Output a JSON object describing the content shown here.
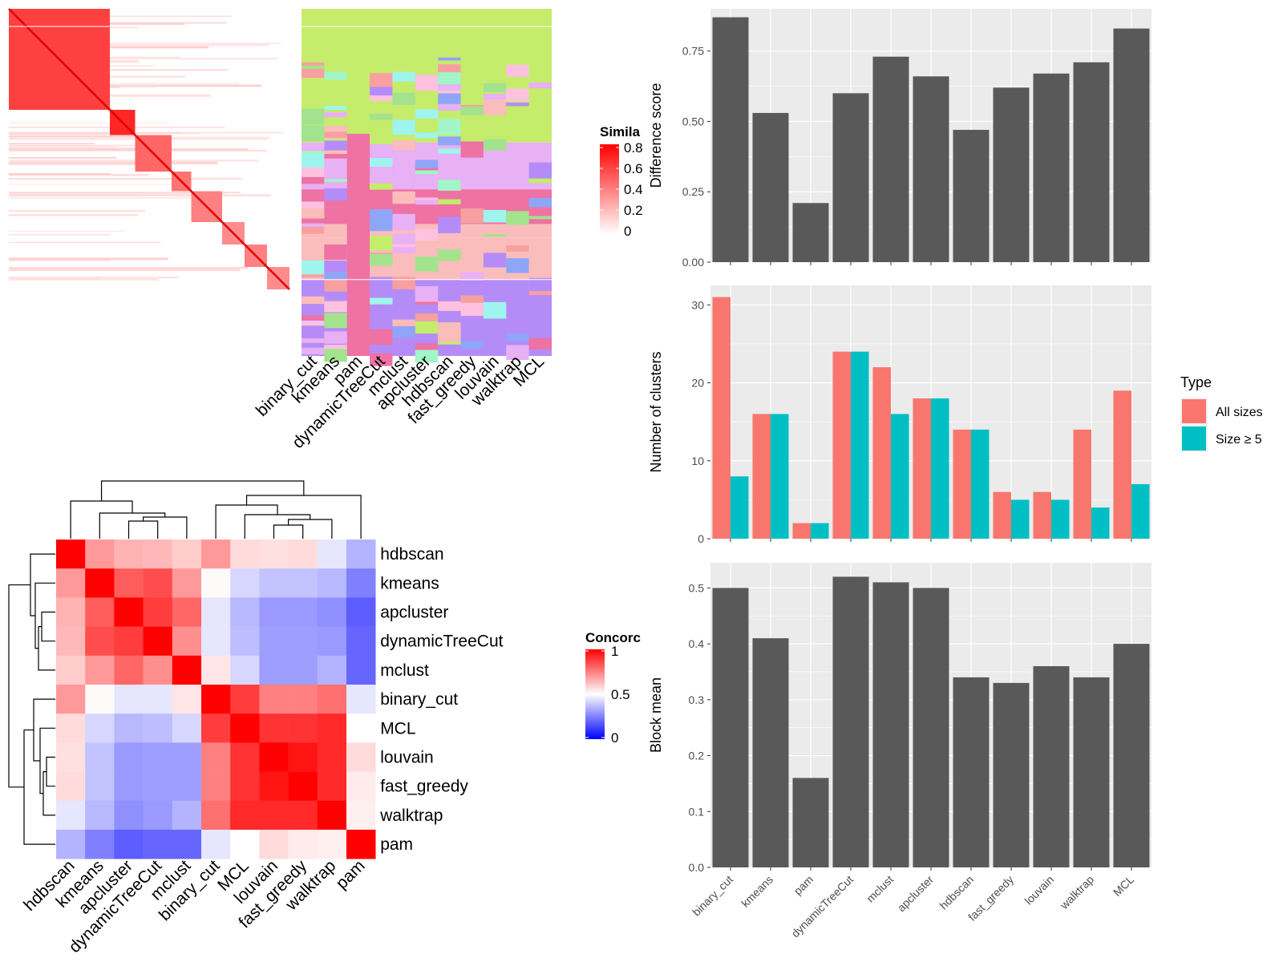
{
  "colors": {
    "panel_bg": "#ebebeb",
    "bar": "#595959",
    "all_sizes": "#F8766D",
    "size_ge_5": "#00BFC4",
    "heat_high": "#ff0000",
    "heat_mid": "#ffffff",
    "heat_low": "#0000ff"
  },
  "similarity_legend": {
    "title": "Simila",
    "ticks": [
      "0.8",
      "0.6",
      "0.4",
      "0.2",
      "0"
    ]
  },
  "concordance_legend": {
    "title": "Concorc",
    "ticks": [
      "1",
      "0.5",
      "0"
    ]
  },
  "membership_columns": [
    "binary_cut",
    "kmeans",
    "pam",
    "dynamicTreeCut",
    "mclust",
    "apcluster",
    "hdbscan",
    "fast_greedy",
    "louvain",
    "walktrap",
    "MCL"
  ],
  "chart_data": [
    {
      "type": "bar",
      "categories": [
        "binary_cut",
        "kmeans",
        "pam",
        "dynamicTreeCut",
        "mclust",
        "apcluster",
        "hdbscan",
        "fast_greedy",
        "louvain",
        "walktrap",
        "MCL"
      ],
      "values": [
        0.87,
        0.53,
        0.21,
        0.6,
        0.73,
        0.66,
        0.47,
        0.62,
        0.67,
        0.71,
        0.83
      ],
      "ylabel": "Difference score",
      "ylim": [
        0,
        0.9
      ],
      "yticks": [
        "0.00",
        "0.25",
        "0.50",
        "0.75"
      ],
      "grid": true
    },
    {
      "type": "bar",
      "categories": [
        "binary_cut",
        "kmeans",
        "pam",
        "dynamicTreeCut",
        "mclust",
        "apcluster",
        "hdbscan",
        "fast_greedy",
        "louvain",
        "walktrap",
        "MCL"
      ],
      "series": [
        {
          "name": "All sizes",
          "values": [
            31,
            16,
            2,
            24,
            22,
            18,
            14,
            6,
            6,
            14,
            19
          ]
        },
        {
          "name": "Size ≥ 5",
          "values": [
            8,
            16,
            2,
            24,
            16,
            18,
            14,
            5,
            5,
            4,
            7
          ]
        }
      ],
      "ylabel": "Number of clusters",
      "ylim": [
        0,
        32.5
      ],
      "yticks": [
        "0",
        "10",
        "20",
        "30"
      ],
      "legend_title": "Type",
      "legend_position": "right",
      "grid": true
    },
    {
      "type": "bar",
      "categories": [
        "binary_cut",
        "kmeans",
        "pam",
        "dynamicTreeCut",
        "mclust",
        "apcluster",
        "hdbscan",
        "fast_greedy",
        "louvain",
        "walktrap",
        "MCL"
      ],
      "values": [
        0.5,
        0.41,
        0.16,
        0.52,
        0.51,
        0.5,
        0.34,
        0.33,
        0.36,
        0.34,
        0.4
      ],
      "ylabel": "Block mean",
      "ylim": [
        0,
        0.545
      ],
      "yticks": [
        "0.0",
        "0.1",
        "0.2",
        "0.3",
        "0.4",
        "0.5"
      ],
      "grid": true
    },
    {
      "type": "heatmap",
      "rows": [
        "hdbscan",
        "kmeans",
        "apcluster",
        "dynamicTreeCut",
        "mclust",
        "binary_cut",
        "MCL",
        "louvain",
        "fast_greedy",
        "walktrap",
        "pam"
      ],
      "columns": [
        "hdbscan",
        "kmeans",
        "apcluster",
        "dynamicTreeCut",
        "mclust",
        "binary_cut",
        "MCL",
        "louvain",
        "fast_greedy",
        "walktrap",
        "pam"
      ],
      "values": [
        [
          1.0,
          0.7,
          0.65,
          0.64,
          0.6,
          0.7,
          0.57,
          0.56,
          0.57,
          0.45,
          0.35
        ],
        [
          0.7,
          1.0,
          0.82,
          0.85,
          0.7,
          0.51,
          0.42,
          0.38,
          0.38,
          0.36,
          0.25
        ],
        [
          0.65,
          0.82,
          1.0,
          0.88,
          0.8,
          0.45,
          0.36,
          0.3,
          0.3,
          0.28,
          0.18
        ],
        [
          0.64,
          0.85,
          0.88,
          1.0,
          0.72,
          0.45,
          0.37,
          0.31,
          0.31,
          0.3,
          0.2
        ],
        [
          0.6,
          0.7,
          0.8,
          0.72,
          1.0,
          0.55,
          0.42,
          0.31,
          0.31,
          0.35,
          0.2
        ],
        [
          0.7,
          0.51,
          0.45,
          0.45,
          0.55,
          1.0,
          0.88,
          0.75,
          0.75,
          0.78,
          0.45
        ],
        [
          0.57,
          0.42,
          0.36,
          0.37,
          0.42,
          0.88,
          1.0,
          0.9,
          0.9,
          0.92,
          0.5
        ],
        [
          0.56,
          0.38,
          0.3,
          0.31,
          0.31,
          0.75,
          0.9,
          1.0,
          0.96,
          0.92,
          0.57
        ],
        [
          0.57,
          0.38,
          0.3,
          0.31,
          0.31,
          0.75,
          0.9,
          0.96,
          1.0,
          0.92,
          0.54
        ],
        [
          0.45,
          0.36,
          0.28,
          0.3,
          0.35,
          0.78,
          0.92,
          0.92,
          0.92,
          1.0,
          0.53
        ],
        [
          0.35,
          0.25,
          0.18,
          0.2,
          0.2,
          0.45,
          0.5,
          0.57,
          0.54,
          0.53,
          1.0
        ]
      ],
      "scale": [
        0,
        1
      ]
    }
  ]
}
